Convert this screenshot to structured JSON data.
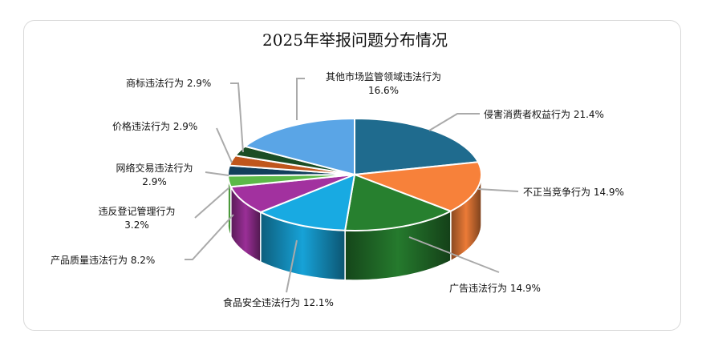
{
  "chart_data": {
    "type": "pie",
    "style": "3d",
    "title": "2025年举报问题分布情况",
    "slices": [
      {
        "label": "侵害消费者权益行为",
        "value": 21.4,
        "text": "侵害消费者权益行为 21.4%",
        "color": "#1f6b8e"
      },
      {
        "label": "不正当竞争行为",
        "value": 14.9,
        "text": "不正当竞争行为 14.9%",
        "color": "#f7813a"
      },
      {
        "label": "广告违法行为",
        "value": 14.9,
        "text": "广告违法行为 14.9%",
        "color": "#27802f"
      },
      {
        "label": "食品安全违法行为",
        "value": 12.1,
        "text": "食品安全违法行为 12.1%",
        "color": "#18aae2"
      },
      {
        "label": "产品质量违法行为",
        "value": 8.2,
        "text": "产品质量违法行为 8.2%",
        "color": "#a2319f"
      },
      {
        "label": "违反登记管理行为",
        "value": 3.2,
        "line1": "违反登记管理行为",
        "line2": "3.2%",
        "color": "#5cb948"
      },
      {
        "label": "网络交易违法行为",
        "value": 2.9,
        "line1": "网络交易违法行为",
        "line2": "2.9%",
        "color": "#123f5c"
      },
      {
        "label": "价格违法行为",
        "value": 2.9,
        "text": "价格违法行为 2.9%",
        "color": "#c0561c"
      },
      {
        "label": "商标违法行为",
        "value": 2.9,
        "text": "商标违法行为 2.9%",
        "color": "#1b4d24"
      },
      {
        "label": "其他市场监管领域违法行为",
        "value": 16.6,
        "line1": "其他市场监管领域违法行为",
        "line2": "16.6%",
        "color": "#5aa5e6"
      }
    ]
  }
}
